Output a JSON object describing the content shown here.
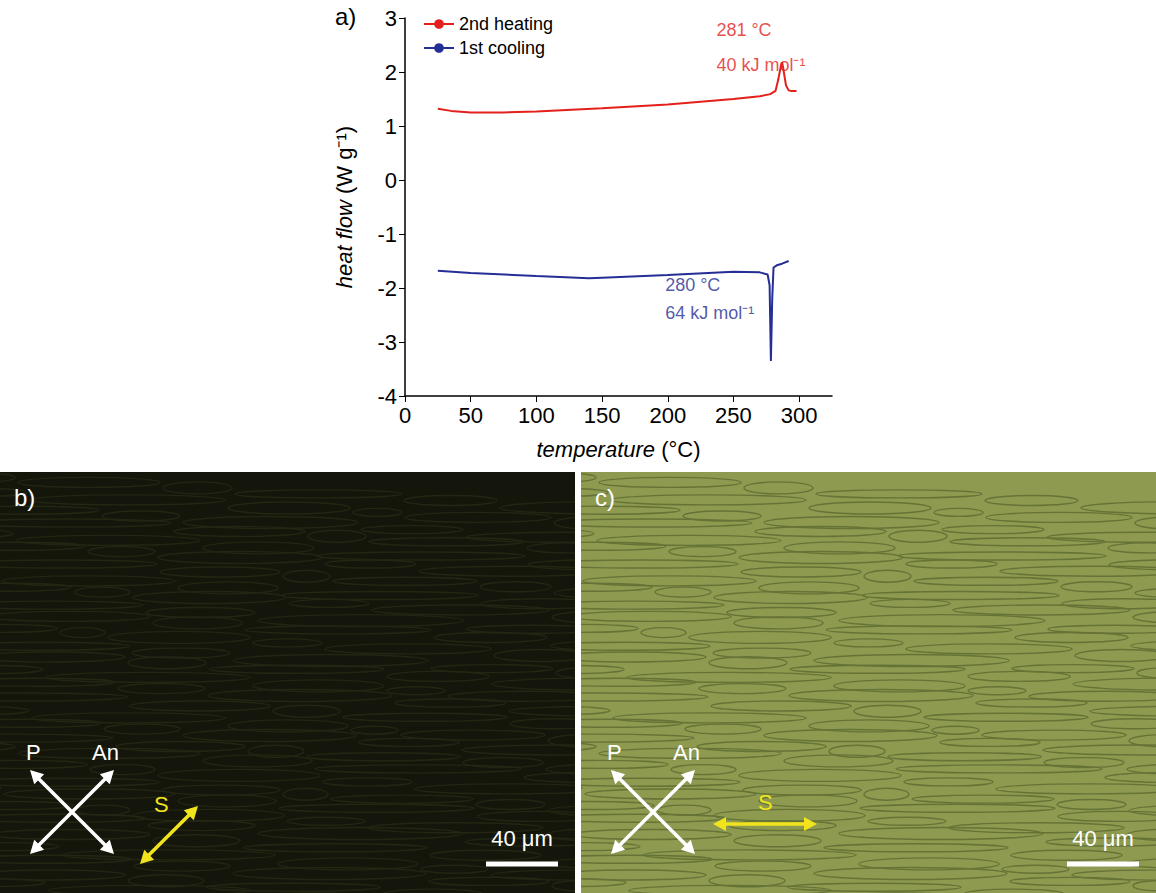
{
  "chart_data": {
    "type": "line",
    "label": "a)",
    "x_label": "temperature (°C)",
    "y_label": "heat flow (W g⁻¹)",
    "xlim": [
      0,
      325
    ],
    "xticks": [
      0,
      50,
      100,
      150,
      200,
      250,
      300
    ],
    "ylim": [
      -4,
      3
    ],
    "yticks": [
      -4,
      -3,
      -2,
      -1,
      0,
      1,
      2,
      3
    ],
    "legend": "upper left",
    "grid": false,
    "series": [
      {
        "name": "2nd heating",
        "color": "#e3201b",
        "x": [
          25,
          35,
          50,
          75,
          100,
          150,
          200,
          250,
          270,
          278,
          282,
          284,
          286,
          287,
          288,
          290,
          292,
          294,
          298
        ],
        "values": [
          1.32,
          1.28,
          1.25,
          1.25,
          1.27,
          1.33,
          1.4,
          1.5,
          1.55,
          1.59,
          1.65,
          1.85,
          2.1,
          2.18,
          2.05,
          1.75,
          1.66,
          1.65,
          1.65
        ]
      },
      {
        "name": "1st cooling",
        "color": "#252e94",
        "x": [
          25,
          50,
          100,
          140,
          150,
          200,
          250,
          270,
          276,
          277.5,
          278.5,
          279.5,
          280.5,
          283,
          287,
          292
        ],
        "values": [
          -1.68,
          -1.72,
          -1.78,
          -1.82,
          -1.81,
          -1.76,
          -1.7,
          -1.71,
          -1.75,
          -1.95,
          -3.35,
          -2.2,
          -1.62,
          -1.58,
          -1.55,
          -1.5
        ]
      }
    ],
    "annotations": [
      {
        "text": "281 °C",
        "x": 237,
        "y": 2.78,
        "color": "#e3201b"
      },
      {
        "text": "40 kJ mol⁻¹",
        "x": 237,
        "y": 2.13,
        "color": "#e3201b"
      },
      {
        "text": "280 °C",
        "x": 198,
        "y": -1.95,
        "color": "#252e94"
      },
      {
        "text": "64 kJ mol⁻¹",
        "x": 198,
        "y": -2.46,
        "color": "#252e94"
      }
    ]
  },
  "images": [
    {
      "label": "b)",
      "color": "#14160b",
      "texture_color": "#2a2d17",
      "polarizer": "P",
      "analyzer": "An",
      "slow_axis": "S",
      "slow_axis_direction": "diagonal",
      "slow_axis_color": "#f2e41c",
      "scale_bar": "40 μm"
    },
    {
      "label": "c)",
      "color": "#8d9a50",
      "texture_color": "#56632c",
      "polarizer": "P",
      "analyzer": "An",
      "slow_axis": "S",
      "slow_axis_direction": "horizontal",
      "slow_axis_color": "#f2e41c",
      "scale_bar": "40 μm"
    }
  ]
}
